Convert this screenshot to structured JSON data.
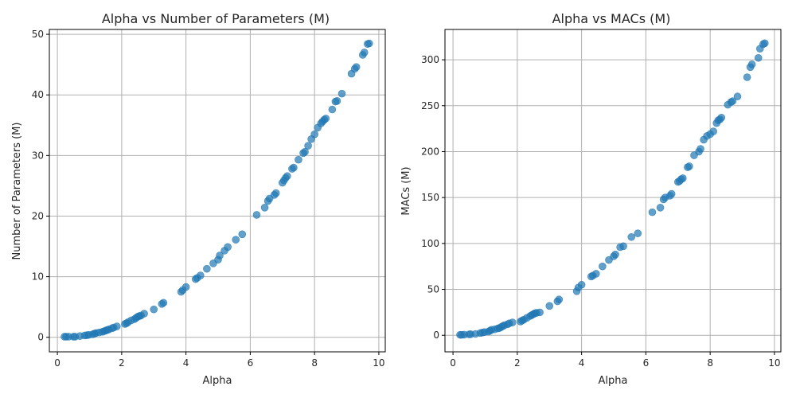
{
  "chart_data": [
    {
      "type": "scatter",
      "title": "Alpha vs Number of Parameters (M)",
      "xlabel": "Alpha",
      "ylabel": "Number of Parameters (M)",
      "xlim": [
        -0.25,
        10.2
      ],
      "ylim": [
        -2.4,
        50.8
      ],
      "xticks": [
        0,
        2,
        4,
        6,
        8,
        10
      ],
      "yticks": [
        0,
        10,
        20,
        30,
        40,
        50
      ],
      "grid": true,
      "color": "#1f77b4",
      "x": [
        0.22,
        0.27,
        0.35,
        0.5,
        0.55,
        0.7,
        0.85,
        0.92,
        0.98,
        1.1,
        1.15,
        1.2,
        1.3,
        1.4,
        1.45,
        1.5,
        1.55,
        1.6,
        1.7,
        1.75,
        1.85,
        2.1,
        2.15,
        2.2,
        2.3,
        2.4,
        2.45,
        2.5,
        2.55,
        2.6,
        2.7,
        3.0,
        3.25,
        3.3,
        3.85,
        3.9,
        4.0,
        4.3,
        4.35,
        4.45,
        4.65,
        4.85,
        5.0,
        5.05,
        5.2,
        5.3,
        5.55,
        5.75,
        6.2,
        6.45,
        6.55,
        6.6,
        6.75,
        6.8,
        7.0,
        7.05,
        7.1,
        7.15,
        7.3,
        7.35,
        7.5,
        7.65,
        7.7,
        7.8,
        7.9,
        8.0,
        8.1,
        8.2,
        8.25,
        8.3,
        8.35,
        8.55,
        8.65,
        8.7,
        8.85,
        9.15,
        9.25,
        9.3,
        9.5,
        9.55,
        9.65,
        9.7
      ],
      "y": [
        0.1,
        0.1,
        0.1,
        0.1,
        0.1,
        0.2,
        0.3,
        0.35,
        0.4,
        0.5,
        0.6,
        0.7,
        0.8,
        0.9,
        1.0,
        1.1,
        1.2,
        1.3,
        1.5,
        1.6,
        1.8,
        2.2,
        2.3,
        2.5,
        2.8,
        3.0,
        3.2,
        3.4,
        3.5,
        3.6,
        3.9,
        4.6,
        5.5,
        5.7,
        7.5,
        7.8,
        8.3,
        9.6,
        9.8,
        10.2,
        11.3,
        12.2,
        12.8,
        13.5,
        14.3,
        14.9,
        16.1,
        17.0,
        20.2,
        21.4,
        22.5,
        22.9,
        23.5,
        23.8,
        25.5,
        25.9,
        26.3,
        26.6,
        27.8,
        28.0,
        29.3,
        30.4,
        30.6,
        31.6,
        32.7,
        33.5,
        34.6,
        35.3,
        35.6,
        35.9,
        36.1,
        37.6,
        38.9,
        39.0,
        40.2,
        43.5,
        44.3,
        44.6,
        46.6,
        47.0,
        48.4,
        48.5
      ]
    },
    {
      "type": "scatter",
      "title": "Alpha vs MACs (M)",
      "xlabel": "Alpha",
      "ylabel": "MACs (M)",
      "xlim": [
        -0.25,
        10.2
      ],
      "ylim": [
        -18,
        333
      ],
      "xticks": [
        0,
        2,
        4,
        6,
        8,
        10
      ],
      "yticks": [
        0,
        50,
        100,
        150,
        200,
        250,
        300
      ],
      "grid": true,
      "color": "#1f77b4",
      "x": [
        0.22,
        0.27,
        0.35,
        0.5,
        0.55,
        0.7,
        0.85,
        0.92,
        0.98,
        1.1,
        1.15,
        1.2,
        1.3,
        1.4,
        1.45,
        1.5,
        1.55,
        1.6,
        1.7,
        1.75,
        1.85,
        2.1,
        2.15,
        2.2,
        2.3,
        2.4,
        2.45,
        2.5,
        2.55,
        2.6,
        2.7,
        3.0,
        3.25,
        3.3,
        3.85,
        3.9,
        4.0,
        4.3,
        4.35,
        4.45,
        4.65,
        4.85,
        5.0,
        5.05,
        5.2,
        5.3,
        5.55,
        5.75,
        6.2,
        6.45,
        6.55,
        6.6,
        6.75,
        6.8,
        7.0,
        7.05,
        7.1,
        7.15,
        7.3,
        7.35,
        7.5,
        7.65,
        7.7,
        7.8,
        7.9,
        8.0,
        8.1,
        8.2,
        8.25,
        8.3,
        8.35,
        8.55,
        8.65,
        8.7,
        8.85,
        9.15,
        9.25,
        9.3,
        9.5,
        9.55,
        9.65,
        9.7
      ],
      "y": [
        0.5,
        0.5,
        0.7,
        1,
        1.2,
        1.5,
        2.5,
        3,
        3.5,
        4,
        5,
        6,
        6.5,
        7.5,
        8,
        9,
        10,
        11,
        12,
        13,
        14,
        15,
        16,
        17,
        19,
        21,
        22,
        23,
        24,
        24.5,
        25,
        32,
        37,
        39,
        48,
        52,
        55,
        64,
        65,
        67,
        75,
        82,
        86,
        88,
        96,
        97,
        107,
        111,
        134,
        139,
        148,
        150,
        152,
        154,
        167,
        168,
        170,
        171,
        183,
        184,
        196,
        200,
        203,
        213,
        217,
        219,
        222,
        231,
        234,
        235,
        237,
        251,
        254,
        255,
        260,
        281,
        292,
        295,
        302,
        312,
        317,
        318
      ]
    }
  ]
}
